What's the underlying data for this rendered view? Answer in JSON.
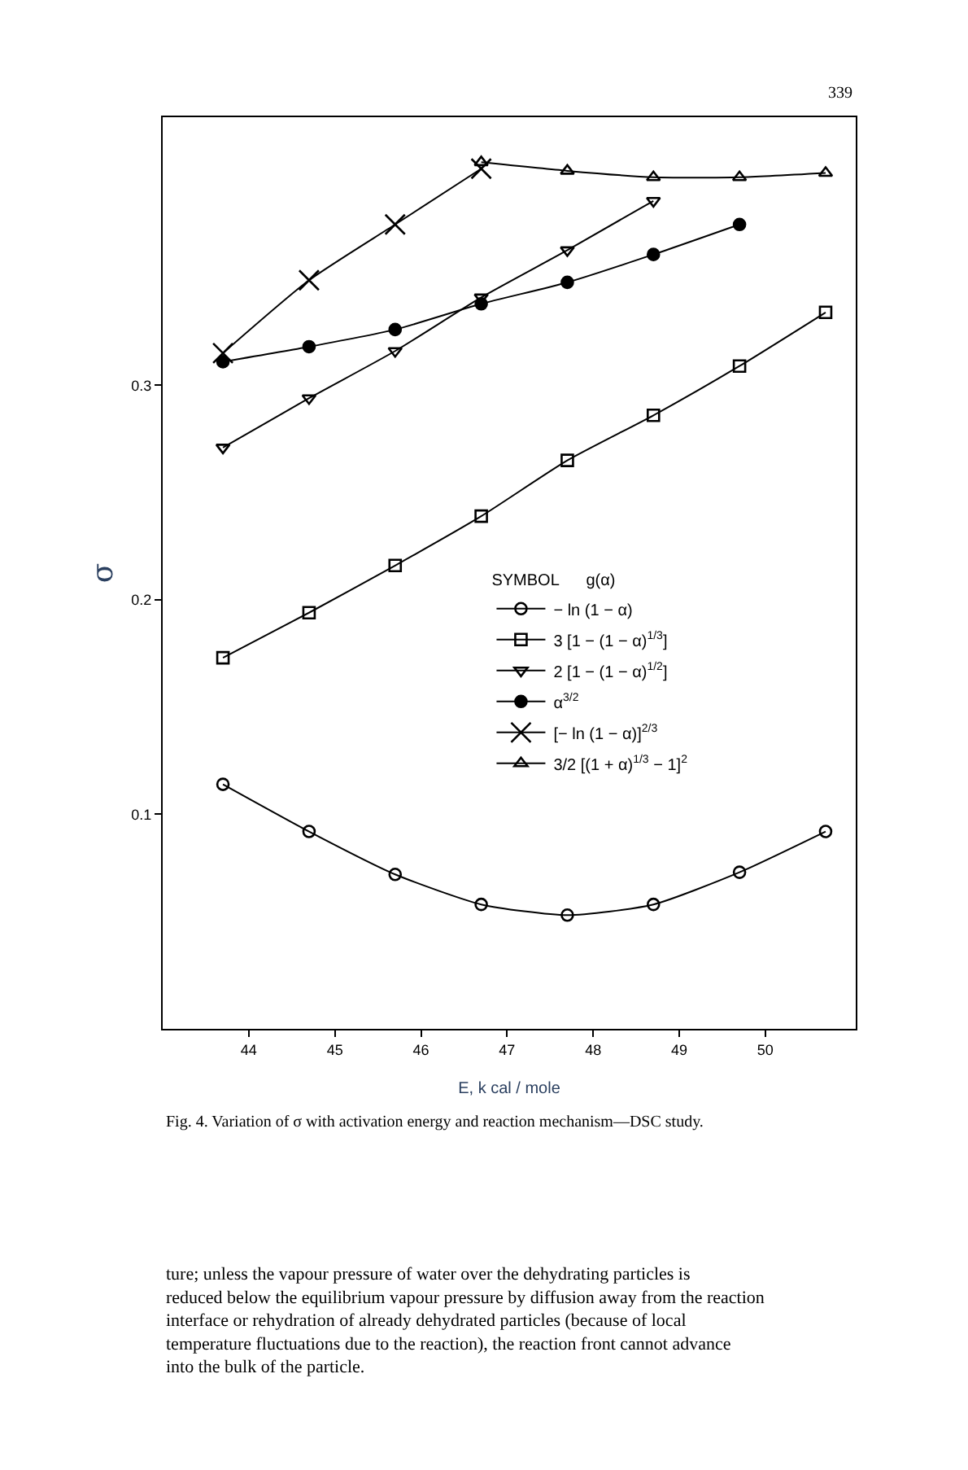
{
  "chart_data": {
    "type": "line",
    "xlabel": "E, k cal / mole",
    "ylabel": "σ",
    "legend_title": "SYMBOL      g(α)",
    "x": [
      43.7,
      44.7,
      45.7,
      46.7,
      47.7,
      48.7,
      49.7,
      50.7
    ],
    "xlim": [
      43.0,
      51.05
    ],
    "xticks": [
      44,
      45,
      46,
      47,
      48,
      49,
      50
    ],
    "ylim": [
      0.0,
      0.425
    ],
    "yticks": [
      0.1,
      0.2,
      0.3
    ],
    "legend": "right",
    "line_style": "solid",
    "series": [
      {
        "name": "− ln (1 − α)",
        "color": "#000000",
        "marker": "circle-open",
        "values": [
          0.114,
          0.092,
          0.072,
          0.058,
          0.053,
          0.058,
          0.073,
          0.092
        ]
      },
      {
        "name": "3 [1 − (1 − α)$^{1/3}$]",
        "color": "#000000",
        "marker": "square-open",
        "values": [
          0.173,
          0.194,
          0.216,
          0.239,
          0.265,
          0.286,
          0.309,
          0.334
        ]
      },
      {
        "name": "2 [1 − (1 − α)$^{1/2}$]",
        "color": "#000000",
        "marker": "triangle-down-open",
        "values": [
          0.271,
          0.294,
          0.316,
          0.341,
          0.363,
          0.386,
          null,
          null
        ]
      },
      {
        "name": "α$^{3/2}$",
        "color": "#000000",
        "marker": "circle",
        "values": [
          0.311,
          0.318,
          0.326,
          0.338,
          0.348,
          0.361,
          0.375,
          null
        ]
      },
      {
        "name": "[− ln (1 − α)]$^{2/3}$",
        "color": "#000000",
        "marker": "cross",
        "values": [
          0.315,
          0.349,
          0.375,
          0.401,
          null,
          null,
          null,
          null
        ]
      },
      {
        "name": "3/2 [(1 + α)$^{1/3}$ − 1]$^{2}$",
        "color": "#000000",
        "marker": "triangle-open",
        "values": [
          null,
          null,
          null,
          0.404,
          0.4,
          0.397,
          0.397,
          0.399
        ]
      }
    ],
    "annotations": [
      "339",
      "Fig. 4. Variation of σ with activation energy and reaction mechanism—DSC study.",
      "ture; unless the vapour pressure of water over the dehydrating particles is reduced below the equilibrium vapour pressure by diffusion away from the reaction interface or rehydration of already dehydrated particles (because of local temperature fluctuations due to the reaction), the reaction front cannot advance into the bulk of the particle."
    ]
  }
}
